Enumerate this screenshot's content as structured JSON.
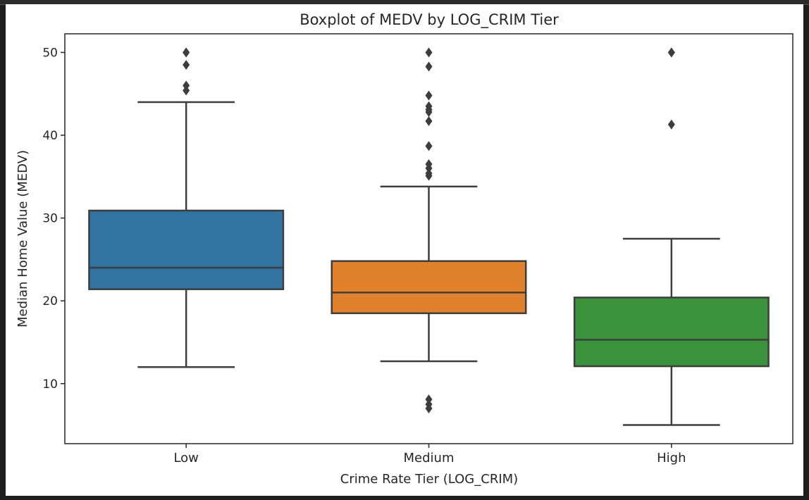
{
  "chart_data": {
    "type": "boxplot",
    "title": "Boxplot of MEDV by LOG_CRIM Tier",
    "xlabel": "Crime Rate Tier (LOG_CRIM)",
    "ylabel": "Median Home Value (MEDV)",
    "ylim": [
      2.75,
      52.25
    ],
    "yticks": [
      10,
      20,
      30,
      40,
      50
    ],
    "grid": false,
    "categories": [
      "Low",
      "Medium",
      "High"
    ],
    "colors": [
      "#3274a1",
      "#e1812c",
      "#3a923a"
    ],
    "boxes": [
      {
        "category": "Low",
        "whisker_low": 12.0,
        "q1": 21.4,
        "median": 24.0,
        "q3": 30.9,
        "whisker_high": 44.0,
        "outliers": [
          50.0,
          50.0,
          48.5,
          46.0,
          45.4
        ]
      },
      {
        "category": "Medium",
        "whisker_low": 12.7,
        "q1": 18.5,
        "median": 21.0,
        "q3": 24.8,
        "whisker_high": 33.8,
        "outliers": [
          50.0,
          48.3,
          44.8,
          43.5,
          43.1,
          42.8,
          41.7,
          38.7,
          36.5,
          36.0,
          35.4,
          35.1,
          8.1,
          7.5,
          7.0
        ]
      },
      {
        "category": "High",
        "whisker_low": 5.0,
        "q1": 12.1,
        "median": 15.3,
        "q3": 20.4,
        "whisker_high": 27.5,
        "outliers": [
          50.0,
          50.0,
          41.3
        ]
      }
    ]
  }
}
